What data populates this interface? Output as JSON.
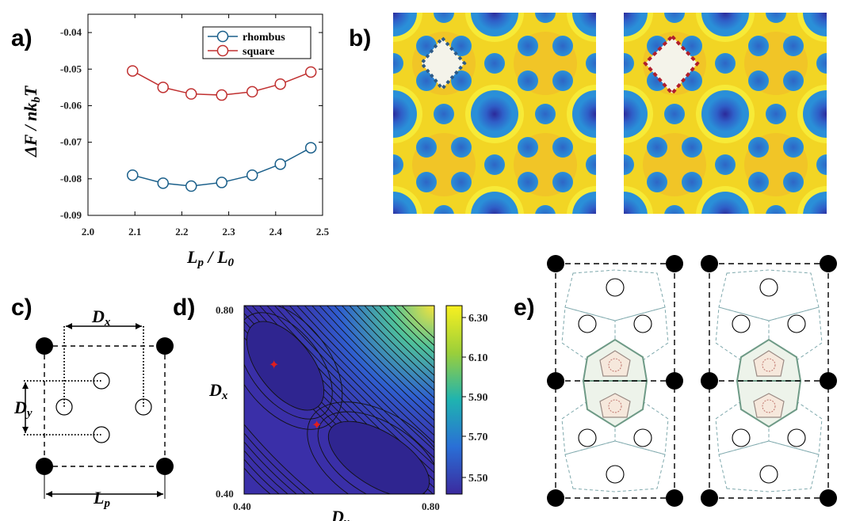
{
  "panels": {
    "a": "a)",
    "b": "b)",
    "c": "c)",
    "d": "d)",
    "e": "e)"
  },
  "chart_data": {
    "type": "line",
    "xlabel": "L_p / L_0",
    "ylabel": "ΔF / nk_bT",
    "xlim": [
      2.0,
      2.5
    ],
    "ylim": [
      -0.09,
      -0.035
    ],
    "xticks": [
      "2.0",
      "2.1",
      "2.2",
      "2.3",
      "2.4",
      "2.5"
    ],
    "yticks": [
      "-0.04",
      "-0.05",
      "-0.06",
      "-0.07",
      "-0.08",
      "-0.09"
    ],
    "legend_position": "top-right",
    "x": [
      2.095,
      2.16,
      2.22,
      2.285,
      2.35,
      2.41,
      2.475
    ],
    "series": [
      {
        "name": "rhombus",
        "color": "#1a5f8a",
        "values": [
          -0.079,
          -0.0812,
          -0.082,
          -0.081,
          -0.079,
          -0.076,
          -0.0715
        ]
      },
      {
        "name": "square",
        "color": "#c03030",
        "values": [
          -0.0505,
          -0.055,
          -0.0568,
          -0.0571,
          -0.0562,
          -0.0541,
          -0.0508
        ]
      }
    ]
  },
  "panel_c": {
    "label_dx": "D",
    "label_dx_sub": "x",
    "label_dy": "D",
    "label_dy_sub": "y",
    "label_lp": "L",
    "label_lp_sub": "p"
  },
  "panel_d": {
    "ylabel": "D",
    "ylabel_sub": "x",
    "xlabel": "D",
    "xlabel_sub": "y",
    "xticks": [
      "0.40",
      "0.80"
    ],
    "yticks": [
      "0.80",
      "0.40"
    ],
    "colorbar_ticks": [
      "6.30",
      "6.10",
      "5.90",
      "5.70",
      "5.50"
    ]
  }
}
